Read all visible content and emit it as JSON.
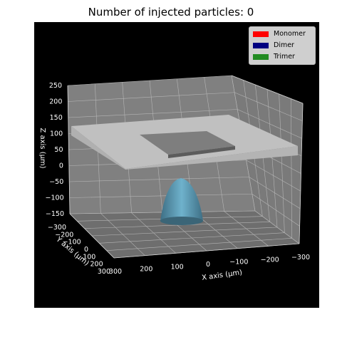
{
  "chart_data": {
    "type": "3d-scene",
    "title": "Number of injected particles: 0",
    "xlabel": "X axis (μm)",
    "ylabel": "Y axis (μm)",
    "zlabel": "Z axis (μm)",
    "x_ticks": [
      "300",
      "200",
      "100",
      "0",
      "−100",
      "−200",
      "−300"
    ],
    "y_ticks": [
      "−300",
      "−200",
      "−100",
      "0",
      "100",
      "200",
      "300"
    ],
    "z_ticks": [
      "250",
      "200",
      "150",
      "100",
      "50",
      "0",
      "−50",
      "−100",
      "−150"
    ],
    "xlim": [
      -300,
      300
    ],
    "ylim": [
      -300,
      300
    ],
    "zlim": [
      -150,
      250
    ],
    "grid": true,
    "legend_placement": "top-right",
    "series": [
      {
        "name": "Monomer",
        "color": "#ff0000",
        "count": 0
      },
      {
        "name": "Dimer",
        "color": "#000080",
        "count": 0
      },
      {
        "name": "Trimer",
        "color": "#228b22",
        "count": 0
      }
    ],
    "colors": {
      "background": "#000000",
      "pane": "#7f7f7f",
      "electrode": "#c0c0c0",
      "cone": "#6fa8c2"
    }
  }
}
